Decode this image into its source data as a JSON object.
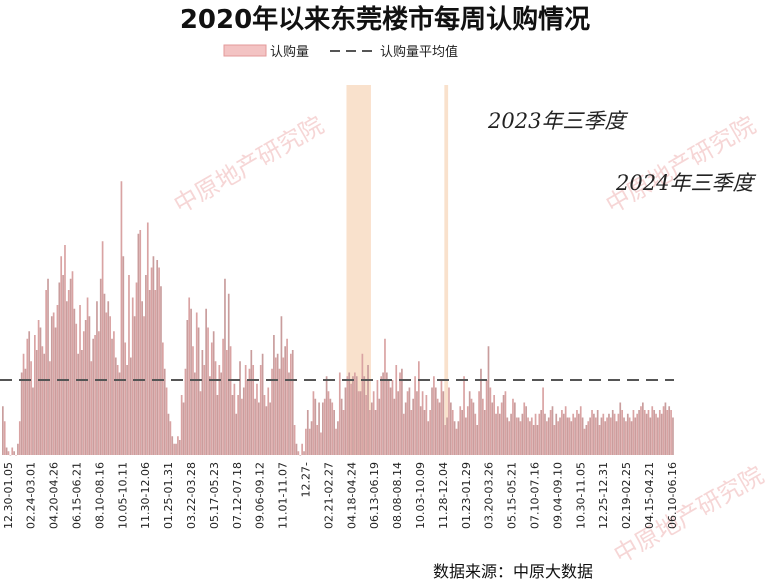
{
  "chart_data": {
    "type": "bar",
    "title": "2020年以来东莞楼市每周认购情况",
    "legend": [
      {
        "name": "认购量",
        "kind": "bar",
        "color": "#e39a9a"
      },
      {
        "name": "认购量平均值",
        "kind": "dashed-line",
        "color": "#555555"
      }
    ],
    "series": [
      {
        "name": "认购量",
        "values": [
          13,
          9,
          2,
          1,
          0,
          2,
          1,
          0,
          3,
          9,
          22,
          27,
          23,
          31,
          33,
          25,
          18,
          32,
          28,
          36,
          34,
          29,
          27,
          44,
          47,
          25,
          37,
          38,
          34,
          40,
          46,
          53,
          48,
          56,
          41,
          44,
          47,
          49,
          39,
          35,
          27,
          40,
          28,
          33,
          36,
          42,
          37,
          25,
          31,
          32,
          41,
          33,
          47,
          57,
          43,
          38,
          41,
          37,
          31,
          33,
          26,
          24,
          22,
          73,
          53,
          30,
          24,
          48,
          26,
          42,
          37,
          46,
          59,
          60,
          41,
          37,
          48,
          62,
          44,
          50,
          53,
          44,
          52,
          50,
          45,
          30,
          23,
          18,
          11,
          9,
          5,
          3,
          3,
          5,
          4,
          16,
          14,
          23,
          36,
          42,
          39,
          29,
          22,
          38,
          34,
          17,
          28,
          24,
          39,
          34,
          21,
          30,
          33,
          25,
          16,
          24,
          22,
          31,
          47,
          28,
          43,
          29,
          16,
          19,
          11,
          16,
          25,
          15,
          18,
          24,
          20,
          23,
          28,
          24,
          15,
          19,
          14,
          24,
          27,
          16,
          13,
          18,
          14,
          23,
          32,
          26,
          27,
          23,
          37,
          26,
          29,
          31,
          22,
          27,
          28,
          8,
          3,
          1,
          0,
          3,
          1,
          7,
          12,
          7,
          9,
          17,
          15,
          8,
          14,
          6,
          14,
          15,
          21,
          17,
          15,
          14,
          12,
          7,
          9,
          22,
          15,
          12,
          18,
          21,
          22,
          19,
          21,
          22,
          21,
          17,
          17,
          27,
          21,
          16,
          24,
          12,
          14,
          17,
          12,
          20,
          15,
          21,
          22,
          31,
          22,
          20,
          18,
          20,
          15,
          24,
          17,
          22,
          23,
          11,
          14,
          17,
          18,
          12,
          15,
          21,
          17,
          25,
          13,
          17,
          12,
          16,
          9,
          12,
          18,
          21,
          18,
          15,
          14,
          20,
          17,
          8,
          10,
          18,
          14,
          12,
          9,
          7,
          9,
          13,
          12,
          21,
          10,
          13,
          17,
          15,
          14,
          11,
          8,
          17,
          23,
          15,
          12,
          20,
          29,
          18,
          14,
          16,
          11,
          13,
          11,
          14,
          16,
          17,
          10,
          9,
          11,
          15,
          14,
          10,
          10,
          9,
          11,
          14,
          13,
          10,
          9,
          10,
          8,
          11,
          8,
          11,
          12,
          18,
          11,
          9,
          10,
          12,
          13,
          8,
          11,
          9,
          10,
          12,
          11,
          13,
          10,
          10,
          9,
          11,
          10,
          12,
          11,
          13,
          10,
          7,
          8,
          9,
          10,
          12,
          11,
          10,
          12,
          8,
          10,
          11,
          9,
          10,
          11,
          10,
          12,
          11,
          9,
          11,
          14,
          12,
          10,
          9,
          11,
          10,
          9,
          12,
          10,
          11,
          12,
          13,
          14,
          12,
          11,
          12,
          10,
          13,
          12,
          11,
          10,
          12,
          11,
          13,
          14,
          12,
          13,
          12,
          10
        ]
      }
    ],
    "average": 20,
    "ylim": [
      0,
      100
    ],
    "xtick_labels": [
      "12.30-01.05",
      "02.24-03.01",
      "04.20-04.26",
      "06.15-06.21",
      "08.10-08.16",
      "10.05-10.11",
      "11.30-12.06",
      "01.25-01.31",
      "03.22-03.28",
      "05.17-05.23",
      "07.12-07.18",
      "09.06-09.12",
      "11.01-11.07",
      "12.27-",
      "02.21-02.27",
      "04.18-04.24",
      "06.13-06.19",
      "08.08-08.14",
      "10.03-10.09",
      "11.28-12.04",
      "01.23-01.29",
      "03.20-03.26",
      "05.15-05.21",
      "07.10-07.16",
      "09.04-09.10",
      "10.30-11.05",
      "12.25-12.31",
      "02.19-02.25",
      "04.15-04.21",
      "06.10-06.16"
    ],
    "highlights": [
      {
        "label": "2023年三季度",
        "from_week": 183,
        "to_week": 196
      },
      {
        "label": "2024年三季度",
        "from_week": 235,
        "to_week": 237
      }
    ],
    "grid": false,
    "legend_position": "top-center"
  },
  "watermark": "中原地产研究院",
  "source_label": "数据来源：中原大数据"
}
